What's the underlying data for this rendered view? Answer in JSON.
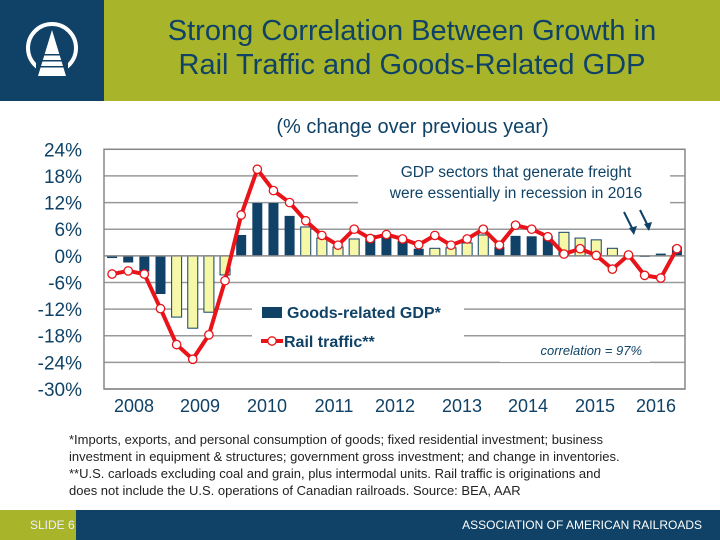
{
  "header": {
    "title_line1": "Strong Correlation Between Growth in",
    "title_line2": "Rail Traffic and Goods-Related GDP",
    "logo": "aar-rail-track-logo"
  },
  "colors": {
    "navy": "#0f4266",
    "olive": "#a8b52a",
    "rail": "#e8141a",
    "bar_dark": "#0f4266",
    "bar_light": "#f7f7a8"
  },
  "chart_data": {
    "type": "bar+line",
    "subtitle": "(% change over previous year)",
    "yticks": [
      "24%",
      "18%",
      "12%",
      "6%",
      "0%",
      "-6%",
      "-12%",
      "-18%",
      "-24%",
      "-30%"
    ],
    "ylim": [
      -30,
      24
    ],
    "grid": true,
    "years": [
      "2008",
      "2009",
      "2010",
      "2011",
      "2012",
      "2013",
      "2014",
      "2015",
      "2016"
    ],
    "quarters_per_year": 4,
    "series": [
      {
        "name": "Goods-related GDP*",
        "type": "bar",
        "values": [
          -0.5,
          -1.5,
          -3.5,
          -8.6,
          -13.8,
          -16.3,
          -12.7,
          -4.3,
          4.7,
          11.9,
          11.9,
          9.0,
          6.5,
          4.0,
          2.0,
          3.8,
          4.7,
          4.3,
          3.4,
          1.6,
          1.7,
          1.8,
          2.9,
          4.7,
          2.0,
          4.5,
          4.4,
          4.4,
          5.3,
          4.0,
          3.6,
          1.7,
          0.0,
          0.1,
          0.5,
          2.1
        ]
      },
      {
        "name": "Rail traffic**",
        "type": "line",
        "values": [
          -4.1,
          -3.4,
          -4.1,
          -11.9,
          -20.0,
          -23.3,
          -17.8,
          -5.6,
          9.2,
          19.5,
          14.7,
          12.0,
          7.9,
          4.6,
          2.4,
          6.0,
          3.9,
          4.8,
          3.8,
          2.5,
          4.6,
          2.4,
          3.8,
          6.0,
          2.4,
          6.9,
          6.0,
          4.3,
          0.4,
          1.6,
          0.1,
          -3.0,
          0.2,
          -4.4,
          -5.0,
          1.6
        ]
      }
    ],
    "legend_position": "center",
    "annotation_line1": "GDP sectors that generate freight",
    "annotation_line2": "were essentially in recession in 2016",
    "correlation": "correlation = 97%"
  },
  "footnote": {
    "line1": "*Imports, exports, and personal consumption of goods; fixed residential investment; business",
    "line2": "investment in equipment & structures; government gross investment; and change in inventories.",
    "line3": "**U.S. carloads excluding coal and grain, plus intermodal units.  Rail traffic is originations and",
    "line4": "does not include the U.S. operations of Canadian railroads.      Source: BEA, AAR"
  },
  "footer": {
    "slide": "SLIDE 6",
    "org": "ASSOCIATION OF AMERICAN RAILROADS"
  }
}
